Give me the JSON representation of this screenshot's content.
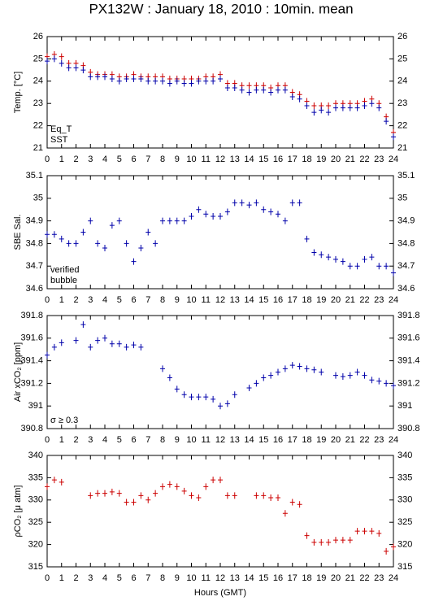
{
  "title": "PX132W : January 18, 2010 : 10min. mean",
  "x_label": "Hours (GMT)",
  "chart_data": [
    {
      "type": "scatter",
      "y_label": "Temp. [°C]",
      "xlim": [
        0,
        24
      ],
      "xticks": [
        0,
        1,
        2,
        3,
        4,
        5,
        6,
        7,
        8,
        9,
        10,
        11,
        12,
        13,
        14,
        15,
        16,
        17,
        18,
        19,
        20,
        21,
        22,
        23,
        24
      ],
      "ylim": [
        21,
        26
      ],
      "yticks": [
        21,
        22,
        23,
        24,
        25,
        26
      ],
      "legend": "lower left",
      "x": [
        0,
        0.5,
        1,
        1.5,
        2,
        2.5,
        3,
        3.5,
        4,
        4.5,
        5,
        5.5,
        6,
        6.5,
        7,
        7.5,
        8,
        8.5,
        9,
        9.5,
        10,
        10.5,
        11,
        11.5,
        12,
        12.5,
        13,
        13.5,
        14,
        14.5,
        15,
        15.5,
        16,
        16.5,
        17,
        17.5,
        18,
        18.5,
        19,
        19.5,
        20,
        20.5,
        21,
        21.5,
        22,
        22.5,
        23,
        23.5,
        24
      ],
      "series": [
        {
          "name": "Eq_T",
          "color": "#cc0000",
          "values": [
            25.1,
            25.2,
            25.1,
            24.8,
            24.8,
            24.7,
            24.4,
            24.3,
            24.3,
            24.3,
            24.2,
            24.2,
            24.3,
            24.2,
            24.2,
            24.2,
            24.2,
            24.1,
            24.1,
            24.1,
            24.1,
            24.1,
            24.2,
            24.2,
            24.3,
            23.9,
            23.9,
            23.8,
            23.8,
            23.8,
            23.8,
            23.7,
            23.8,
            23.8,
            23.5,
            23.4,
            23.1,
            22.9,
            22.9,
            22.9,
            23.0,
            23.0,
            23.0,
            23.0,
            23.1,
            23.2,
            23.0,
            22.4,
            21.7
          ]
        },
        {
          "name": "SST",
          "color": "#0000aa",
          "values": [
            24.9,
            25.0,
            24.8,
            24.6,
            24.6,
            24.5,
            24.2,
            24.2,
            24.2,
            24.1,
            24.0,
            24.1,
            24.1,
            24.1,
            24.0,
            24.0,
            24.0,
            23.9,
            24.0,
            23.9,
            23.9,
            24.0,
            24.0,
            24.0,
            24.1,
            23.7,
            23.7,
            23.6,
            23.5,
            23.6,
            23.6,
            23.5,
            23.6,
            23.6,
            23.3,
            23.2,
            22.9,
            22.6,
            22.7,
            22.6,
            22.8,
            22.8,
            22.8,
            22.8,
            22.9,
            23.0,
            22.8,
            22.2,
            21.5
          ]
        }
      ]
    },
    {
      "type": "scatter",
      "y_label": "SBE Sal.",
      "xlim": [
        0,
        24
      ],
      "xticks": [
        0,
        1,
        2,
        3,
        4,
        5,
        6,
        7,
        8,
        9,
        10,
        11,
        12,
        13,
        14,
        15,
        16,
        17,
        18,
        19,
        20,
        21,
        22,
        23,
        24
      ],
      "ylim": [
        34.6,
        35.1
      ],
      "yticks": [
        34.6,
        34.7,
        34.8,
        34.9,
        35,
        35.1
      ],
      "legend": "lower left",
      "annotations": [
        {
          "text": "bubble",
          "color": "#cc00cc"
        }
      ],
      "x": [
        0,
        0.5,
        1,
        1.5,
        2,
        2.5,
        3,
        3.5,
        4,
        4.5,
        5,
        5.5,
        6,
        6.5,
        7,
        7.5,
        8,
        8.5,
        9,
        9.5,
        10,
        10.5,
        11,
        11.5,
        12,
        12.5,
        13,
        13.5,
        14,
        14.5,
        15,
        15.5,
        16,
        16.5,
        17,
        17.5,
        18,
        18.5,
        19,
        19.5,
        20,
        20.5,
        21,
        21.5,
        22,
        22.5,
        23,
        23.5,
        24
      ],
      "series": [
        {
          "name": "verified",
          "color": "#0000aa",
          "values": [
            34.84,
            34.84,
            34.82,
            34.8,
            34.8,
            34.85,
            34.9,
            34.8,
            34.78,
            34.88,
            34.9,
            34.8,
            34.72,
            34.78,
            34.85,
            34.8,
            34.9,
            34.9,
            34.9,
            34.9,
            34.92,
            34.95,
            34.93,
            34.92,
            34.92,
            34.94,
            34.98,
            34.98,
            34.97,
            34.98,
            34.95,
            34.94,
            34.93,
            34.9,
            34.98,
            34.98,
            34.82,
            34.76,
            34.75,
            34.74,
            34.73,
            34.72,
            34.7,
            34.7,
            34.73,
            34.74,
            34.7,
            34.7,
            34.67
          ]
        }
      ]
    },
    {
      "type": "scatter",
      "y_label": "Air xCO₂ [ppm]",
      "xlim": [
        0,
        24
      ],
      "xticks": [
        0,
        1,
        2,
        3,
        4,
        5,
        6,
        7,
        8,
        9,
        10,
        11,
        12,
        13,
        14,
        15,
        16,
        17,
        18,
        19,
        20,
        21,
        22,
        23,
        24
      ],
      "ylim": [
        390.8,
        391.8
      ],
      "yticks": [
        390.8,
        391,
        391.2,
        391.4,
        391.6,
        391.8
      ],
      "legend": "lower left",
      "annotations": [
        {
          "text": "σ ≥ 0.3",
          "color": "#cc00cc"
        }
      ],
      "x": [
        0,
        0.5,
        1,
        1.5,
        2,
        2.5,
        3,
        3.5,
        4,
        4.5,
        5,
        5.5,
        6,
        6.5,
        7,
        7.5,
        8,
        8.5,
        9,
        9.5,
        10,
        10.5,
        11,
        11.5,
        12,
        12.5,
        13,
        13.5,
        14,
        14.5,
        15,
        15.5,
        16,
        16.5,
        17,
        17.5,
        18,
        18.5,
        19,
        19.5,
        20,
        20.5,
        21,
        21.5,
        22,
        22.5,
        23,
        23.5,
        24
      ],
      "series": [
        {
          "color": "#0000aa",
          "values": [
            391.45,
            391.52,
            391.56,
            null,
            391.58,
            391.72,
            391.52,
            391.58,
            391.6,
            391.55,
            391.55,
            391.52,
            391.54,
            391.52,
            null,
            null,
            391.33,
            391.25,
            391.15,
            391.1,
            391.08,
            391.08,
            391.08,
            391.06,
            391.0,
            391.02,
            391.1,
            null,
            391.16,
            391.2,
            391.25,
            391.27,
            391.3,
            391.33,
            391.36,
            391.35,
            391.33,
            391.32,
            391.3,
            null,
            391.27,
            391.26,
            391.27,
            391.3,
            391.27,
            391.23,
            391.22,
            391.2,
            391.18
          ]
        }
      ]
    },
    {
      "type": "scatter",
      "y_label": "ρCO₂ [μ atm]",
      "xlim": [
        0,
        24
      ],
      "xticks": [
        0,
        1,
        2,
        3,
        4,
        5,
        6,
        7,
        8,
        9,
        10,
        11,
        12,
        13,
        14,
        15,
        16,
        17,
        18,
        19,
        20,
        21,
        22,
        23,
        24
      ],
      "ylim": [
        315,
        340
      ],
      "yticks": [
        315,
        320,
        325,
        330,
        335,
        340
      ],
      "x": [
        0,
        0.5,
        1,
        1.5,
        2,
        2.5,
        3,
        3.5,
        4,
        4.5,
        5,
        5.5,
        6,
        6.5,
        7,
        7.5,
        8,
        8.5,
        9,
        9.5,
        10,
        10.5,
        11,
        11.5,
        12,
        12.5,
        13,
        13.5,
        14,
        14.5,
        15,
        15.5,
        16,
        16.5,
        17,
        17.5,
        18,
        18.5,
        19,
        19.5,
        20,
        20.5,
        21,
        21.5,
        22,
        22.5,
        23,
        23.5,
        24
      ],
      "series": [
        {
          "color": "#cc0000",
          "values": [
            333,
            334.5,
            334,
            null,
            null,
            null,
            331,
            331.5,
            331.5,
            331.8,
            331.5,
            329.5,
            329.5,
            331,
            330,
            331.5,
            333,
            333.5,
            333,
            332,
            331,
            330.5,
            333,
            334.5,
            334.5,
            331,
            331,
            null,
            null,
            331,
            331,
            330.5,
            330.5,
            327,
            329.5,
            329,
            322,
            320.5,
            320.5,
            320.5,
            321,
            321,
            321,
            323,
            323,
            323,
            322.5,
            318.5,
            319.5
          ]
        }
      ]
    }
  ]
}
